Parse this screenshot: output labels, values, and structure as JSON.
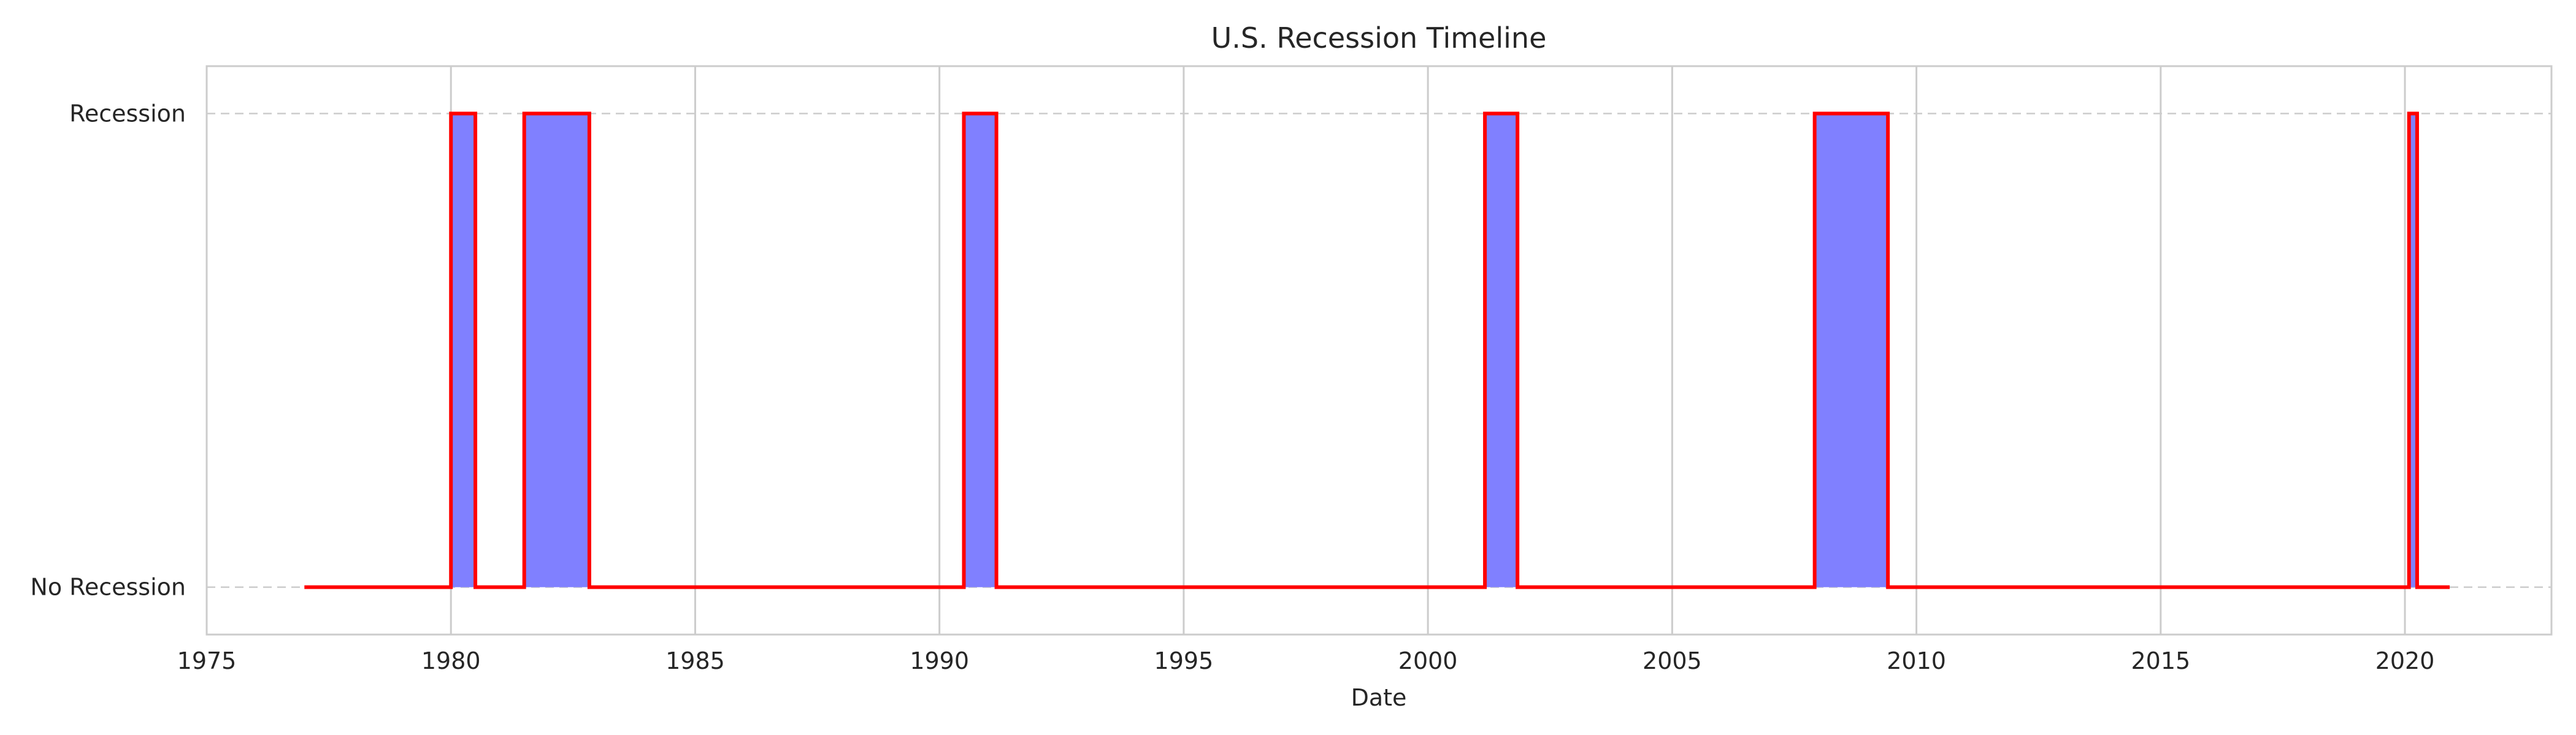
{
  "chart_data": {
    "type": "area",
    "title": "U.S. Recession Timeline",
    "xlabel": "Date",
    "ylabel": "",
    "x_axis": {
      "scale": "time",
      "range": [
        1975,
        2023
      ],
      "ticks": [
        "1975",
        "1980",
        "1985",
        "1990",
        "1995",
        "2000",
        "2005",
        "2010",
        "2015",
        "2020"
      ]
    },
    "y_axis": {
      "range": [
        -0.1,
        1.1
      ],
      "tick_values": [
        1,
        0
      ],
      "tick_labels": [
        "Recession",
        "No Recession"
      ]
    },
    "grid": {
      "vertical": true,
      "horizontal": "dashed"
    },
    "data_start": "1977-01",
    "data_end": "2020-12",
    "recessions": [
      {
        "start": "1980-01",
        "end": "1980-07"
      },
      {
        "start": "1981-07",
        "end": "1982-11"
      },
      {
        "start": "1990-07",
        "end": "1991-03"
      },
      {
        "start": "2001-03",
        "end": "2001-11"
      },
      {
        "start": "2007-12",
        "end": "2009-06"
      },
      {
        "start": "2020-02",
        "end": "2020-04"
      }
    ],
    "line_color": "#ff0000",
    "fill_color": "#8080ff"
  }
}
